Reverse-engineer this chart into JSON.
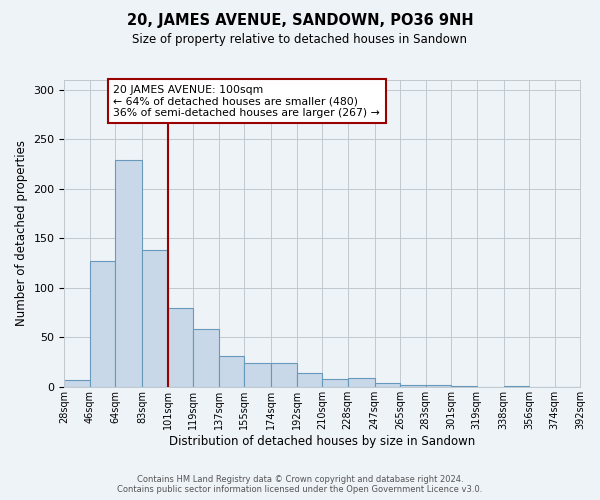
{
  "title": "20, JAMES AVENUE, SANDOWN, PO36 9NH",
  "subtitle": "Size of property relative to detached houses in Sandown",
  "xlabel": "Distribution of detached houses by size in Sandown",
  "ylabel": "Number of detached properties",
  "bar_color": "#c8d8e8",
  "bar_edgecolor": "#6699bb",
  "bin_edges": [
    28,
    46,
    64,
    83,
    101,
    119,
    137,
    155,
    174,
    192,
    210,
    228,
    247,
    265,
    283,
    301,
    319,
    338,
    356,
    374,
    392
  ],
  "bin_labels": [
    "28sqm",
    "46sqm",
    "64sqm",
    "83sqm",
    "101sqm",
    "119sqm",
    "137sqm",
    "155sqm",
    "174sqm",
    "192sqm",
    "210sqm",
    "228sqm",
    "247sqm",
    "265sqm",
    "283sqm",
    "301sqm",
    "319sqm",
    "338sqm",
    "356sqm",
    "374sqm",
    "392sqm"
  ],
  "counts": [
    7,
    127,
    229,
    138,
    80,
    58,
    31,
    24,
    24,
    14,
    8,
    9,
    4,
    2,
    2,
    1,
    0,
    1,
    0,
    0
  ],
  "property_line_x": 101,
  "ylim": [
    0,
    310
  ],
  "yticks": [
    0,
    50,
    100,
    150,
    200,
    250,
    300
  ],
  "annotation_title": "20 JAMES AVENUE: 100sqm",
  "annotation_line1": "← 64% of detached houses are smaller (480)",
  "annotation_line2": "36% of semi-detached houses are larger (267) →",
  "footer_line1": "Contains HM Land Registry data © Crown copyright and database right 2024.",
  "footer_line2": "Contains public sector information licensed under the Open Government Licence v3.0.",
  "bg_color": "#eef3f8",
  "plot_bg_color": "#eef3f8",
  "grid_color": "#c0c8d0"
}
